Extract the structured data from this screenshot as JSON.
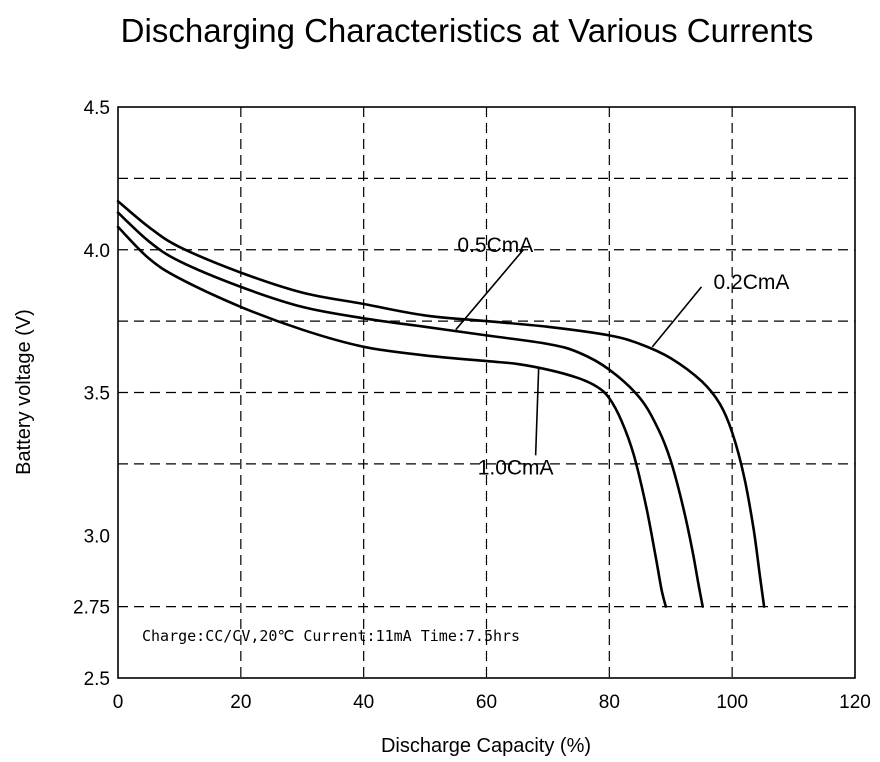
{
  "chart_data": {
    "type": "line",
    "title": "Discharging Characteristics at Various Currents",
    "xlabel": "Discharge Capacity (%)",
    "ylabel": "Battery voltage (V)",
    "xlim": [
      0,
      120
    ],
    "ylim": [
      2.5,
      4.5
    ],
    "x_ticks": [
      0,
      20,
      40,
      60,
      80,
      100,
      120
    ],
    "x_tick_labels": [
      "0",
      "20",
      "40",
      "60",
      "80",
      "100",
      "120"
    ],
    "y_ticks": [
      2.5,
      2.75,
      3.0,
      3.5,
      4.0,
      4.5
    ],
    "y_tick_labels": [
      "2.5",
      "2.75",
      "3.0",
      "3.5",
      "4.0",
      "4.5"
    ],
    "x_grid": [
      20,
      40,
      60,
      80,
      100
    ],
    "y_grid": [
      2.75,
      3.25,
      3.5,
      3.75,
      4.0,
      4.25
    ],
    "grid": true,
    "note": "Charge:CC/CV,20℃ Current:11mA Time:7.5hrs",
    "series": [
      {
        "name": "0.2CmA",
        "x": [
          0,
          5,
          10,
          20,
          30,
          40,
          50,
          60,
          70,
          80,
          85,
          90,
          95,
          98,
          100,
          102,
          103.5,
          104.5,
          105.2
        ],
        "y": [
          4.17,
          4.08,
          4.01,
          3.92,
          3.85,
          3.81,
          3.77,
          3.75,
          3.73,
          3.7,
          3.67,
          3.62,
          3.54,
          3.46,
          3.36,
          3.2,
          3.02,
          2.86,
          2.75
        ]
      },
      {
        "name": "0.5CmA",
        "x": [
          0,
          5,
          10,
          20,
          30,
          40,
          50,
          60,
          70,
          75,
          80,
          85,
          88,
          90,
          92,
          93.5,
          94.5,
          95.2
        ],
        "y": [
          4.13,
          4.03,
          3.96,
          3.87,
          3.8,
          3.76,
          3.73,
          3.7,
          3.67,
          3.64,
          3.58,
          3.48,
          3.37,
          3.26,
          3.1,
          2.95,
          2.83,
          2.75
        ]
      },
      {
        "name": "1.0CmA",
        "x": [
          0,
          5,
          10,
          20,
          30,
          40,
          50,
          60,
          65,
          70,
          75,
          78,
          80,
          82,
          84,
          86,
          87.5,
          88.5,
          89.2
        ],
        "y": [
          4.08,
          3.97,
          3.9,
          3.8,
          3.72,
          3.66,
          3.63,
          3.61,
          3.6,
          3.58,
          3.55,
          3.52,
          3.48,
          3.4,
          3.28,
          3.1,
          2.93,
          2.81,
          2.75
        ]
      }
    ],
    "annotations": [
      {
        "text": "0.5CmA",
        "series": "0.5CmA",
        "point": [
          55,
          3.72
        ],
        "anchor": [
          66,
          4.0
        ]
      },
      {
        "text": "0.2CmA",
        "series": "0.2CmA",
        "point": [
          87,
          3.66
        ],
        "anchor": [
          95,
          3.87
        ]
      },
      {
        "text": "1.0CmA",
        "series": "1.0CmA",
        "point": [
          68.5,
          3.59
        ],
        "anchor": [
          68,
          3.28
        ]
      }
    ]
  }
}
